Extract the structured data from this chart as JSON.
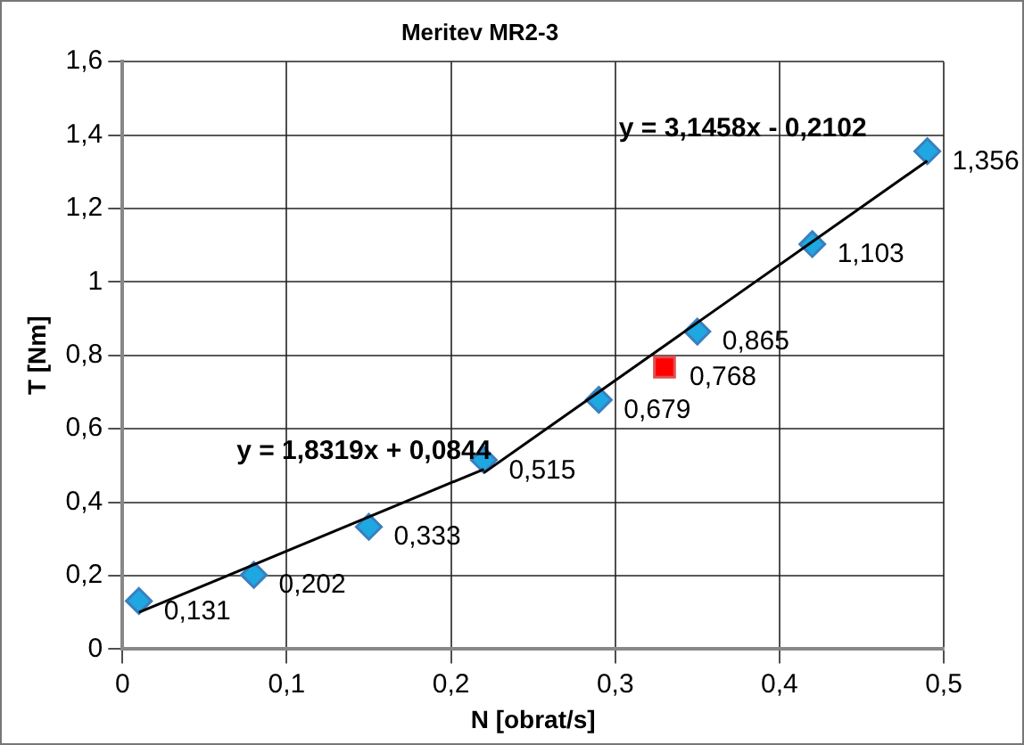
{
  "chart_data": {
    "type": "scatter",
    "title": "Meritev MR2-3",
    "xlabel": "N [obrat/s]",
    "ylabel": "T [Nm]",
    "xlim": [
      0,
      0.5
    ],
    "xticks": [
      {
        "value": 0,
        "label": "0"
      },
      {
        "value": 0.1,
        "label": "0,1"
      },
      {
        "value": 0.2,
        "label": "0,2"
      },
      {
        "value": 0.3,
        "label": "0,3"
      },
      {
        "value": 0.4,
        "label": "0,4"
      },
      {
        "value": 0.5,
        "label": "0,5"
      }
    ],
    "ylim": [
      0,
      1.6
    ],
    "yticks": [
      {
        "value": 0,
        "label": "0"
      },
      {
        "value": 0.2,
        "label": "0,2"
      },
      {
        "value": 0.4,
        "label": "0,4"
      },
      {
        "value": 0.6,
        "label": "0,6"
      },
      {
        "value": 0.8,
        "label": "0,8"
      },
      {
        "value": 1,
        "label": "1"
      },
      {
        "value": 1.2,
        "label": "1,2"
      },
      {
        "value": 1.4,
        "label": "1,4"
      },
      {
        "value": 1.6,
        "label": "1,6"
      }
    ],
    "grid": true,
    "marker": "diamond",
    "series": [
      {
        "type": "line",
        "color": "#000000",
        "x": [
          0.01,
          0.22
        ],
        "values": [
          0.1,
          0.49
        ],
        "marker": "none"
      },
      {
        "type": "line",
        "color": "#000000",
        "x": [
          0.22,
          0.49
        ],
        "values": [
          0.48,
          1.33
        ],
        "marker": "none"
      },
      {
        "color": "#1ea7e1",
        "x": [
          0.01,
          0.08,
          0.15,
          0.22
        ],
        "values": [
          0.131,
          0.202,
          0.333,
          0.515
        ],
        "value_labels": [
          "0,131",
          "0,202",
          "0,333",
          "0,515"
        ]
      },
      {
        "color": "#1ea7e1",
        "x": [
          0.29,
          0.35,
          0.42,
          0.49
        ],
        "values": [
          0.679,
          0.865,
          1.103,
          1.356
        ],
        "value_labels": [
          "0,679",
          "0,865",
          "1,103",
          "1,356"
        ]
      },
      {
        "color": "#ff0000",
        "x": [
          0.33
        ],
        "values": [
          0.768
        ],
        "marker": "square",
        "value_labels": [
          "0,768"
        ]
      }
    ],
    "annotations": [
      "y = 1,8319x + 0,0844",
      "y = 3,1458x - 0,2102"
    ]
  }
}
